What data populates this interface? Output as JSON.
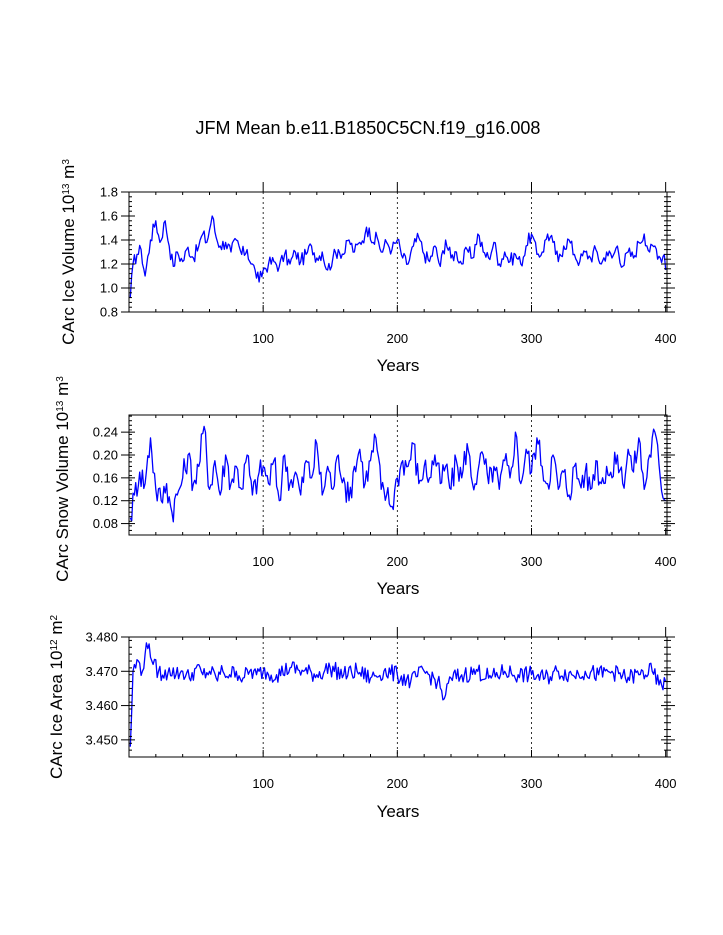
{
  "title": "JFM Mean b.e11.B1850C5CN.f19_g16.008",
  "colors": {
    "series": "#0000ff",
    "axis": "#000000",
    "background": "#ffffff"
  },
  "chart_data": [
    {
      "type": "line",
      "ylabel_main": "CArc Ice Volume 10",
      "ylabel_exp1": "13",
      "ylabel_mid": " m",
      "ylabel_exp2": "3",
      "xlabel": "Years",
      "xlim": [
        0,
        401
      ],
      "ylim": [
        0.8,
        1.8
      ],
      "xticks": [
        100,
        200,
        300,
        400
      ],
      "xtick_labels": [
        "100",
        "200",
        "300",
        "400"
      ],
      "yticks": [
        0.8,
        1.0,
        1.2,
        1.4,
        1.6,
        1.8
      ],
      "ytick_labels": [
        "0.8",
        "1.0",
        "1.2",
        "1.4",
        "1.6",
        "1.8"
      ],
      "grid_x": [
        100,
        200,
        300
      ],
      "anchors": [
        [
          1,
          0.92
        ],
        [
          3,
          1.2
        ],
        [
          6,
          1.28
        ],
        [
          9,
          1.32
        ],
        [
          12,
          1.1
        ],
        [
          16,
          1.4
        ],
        [
          20,
          1.56
        ],
        [
          23,
          1.38
        ],
        [
          27,
          1.56
        ],
        [
          30,
          1.35
        ],
        [
          33,
          1.18
        ],
        [
          36,
          1.3
        ],
        [
          40,
          1.22
        ],
        [
          44,
          1.34
        ],
        [
          48,
          1.25
        ],
        [
          52,
          1.35
        ],
        [
          55,
          1.45
        ],
        [
          58,
          1.38
        ],
        [
          62,
          1.6
        ],
        [
          65,
          1.42
        ],
        [
          68,
          1.35
        ],
        [
          72,
          1.38
        ],
        [
          76,
          1.3
        ],
        [
          80,
          1.4
        ],
        [
          84,
          1.28
        ],
        [
          88,
          1.32
        ],
        [
          91,
          1.2
        ],
        [
          94,
          1.15
        ],
        [
          97,
          1.05
        ],
        [
          100,
          1.15
        ],
        [
          104,
          1.2
        ],
        [
          108,
          1.22
        ],
        [
          112,
          1.18
        ],
        [
          116,
          1.28
        ],
        [
          120,
          1.2
        ],
        [
          124,
          1.3
        ],
        [
          128,
          1.22
        ],
        [
          132,
          1.28
        ],
        [
          136,
          1.35
        ],
        [
          140,
          1.25
        ],
        [
          144,
          1.3
        ],
        [
          148,
          1.15
        ],
        [
          152,
          1.25
        ],
        [
          156,
          1.32
        ],
        [
          160,
          1.28
        ],
        [
          164,
          1.4
        ],
        [
          168,
          1.3
        ],
        [
          172,
          1.38
        ],
        [
          176,
          1.45
        ],
        [
          179,
          1.5
        ],
        [
          182,
          1.38
        ],
        [
          185,
          1.42
        ],
        [
          188,
          1.3
        ],
        [
          192,
          1.38
        ],
        [
          196,
          1.32
        ],
        [
          200,
          1.4
        ],
        [
          204,
          1.25
        ],
        [
          208,
          1.2
        ],
        [
          212,
          1.35
        ],
        [
          216,
          1.42
        ],
        [
          220,
          1.28
        ],
        [
          224,
          1.22
        ],
        [
          228,
          1.35
        ],
        [
          232,
          1.18
        ],
        [
          236,
          1.4
        ],
        [
          240,
          1.25
        ],
        [
          244,
          1.3
        ],
        [
          248,
          1.2
        ],
        [
          252,
          1.32
        ],
        [
          256,
          1.25
        ],
        [
          260,
          1.45
        ],
        [
          264,
          1.3
        ],
        [
          268,
          1.25
        ],
        [
          272,
          1.38
        ],
        [
          276,
          1.2
        ],
        [
          280,
          1.3
        ],
        [
          284,
          1.22
        ],
        [
          288,
          1.28
        ],
        [
          292,
          1.2
        ],
        [
          296,
          1.35
        ],
        [
          300,
          1.45
        ],
        [
          304,
          1.28
        ],
        [
          308,
          1.3
        ],
        [
          312,
          1.45
        ],
        [
          316,
          1.38
        ],
        [
          320,
          1.22
        ],
        [
          324,
          1.35
        ],
        [
          328,
          1.4
        ],
        [
          332,
          1.28
        ],
        [
          336,
          1.22
        ],
        [
          340,
          1.3
        ],
        [
          344,
          1.25
        ],
        [
          348,
          1.32
        ],
        [
          352,
          1.2
        ],
        [
          356,
          1.3
        ],
        [
          360,
          1.25
        ],
        [
          364,
          1.35
        ],
        [
          368,
          1.18
        ],
        [
          372,
          1.3
        ],
        [
          376,
          1.25
        ],
        [
          380,
          1.38
        ],
        [
          384,
          1.45
        ],
        [
          388,
          1.3
        ],
        [
          392,
          1.35
        ],
        [
          396,
          1.25
        ],
        [
          399,
          1.28
        ],
        [
          400,
          1.15
        ]
      ],
      "amp": 0.06
    },
    {
      "type": "line",
      "ylabel_main": "CArc Snow Volume 10",
      "ylabel_exp1": "13",
      "ylabel_mid": " m",
      "ylabel_exp2": "3",
      "xlabel": "Years",
      "xlim": [
        0,
        401
      ],
      "ylim": [
        0.06,
        0.27
      ],
      "xticks": [
        100,
        200,
        300,
        400
      ],
      "xtick_labels": [
        "100",
        "200",
        "300",
        "400"
      ],
      "yticks": [
        0.08,
        0.12,
        0.16,
        0.2,
        0.24
      ],
      "ytick_labels": [
        "0.08",
        "0.12",
        "0.16",
        "0.20",
        "0.24"
      ],
      "grid_x": [
        100,
        200,
        300
      ],
      "anchors": [
        [
          1,
          0.09
        ],
        [
          4,
          0.13
        ],
        [
          8,
          0.17
        ],
        [
          12,
          0.15
        ],
        [
          16,
          0.23
        ],
        [
          20,
          0.14
        ],
        [
          24,
          0.12
        ],
        [
          28,
          0.15
        ],
        [
          32,
          0.1
        ],
        [
          36,
          0.13
        ],
        [
          40,
          0.16
        ],
        [
          44,
          0.2
        ],
        [
          48,
          0.15
        ],
        [
          52,
          0.18
        ],
        [
          56,
          0.25
        ],
        [
          60,
          0.14
        ],
        [
          64,
          0.19
        ],
        [
          68,
          0.13
        ],
        [
          72,
          0.2
        ],
        [
          76,
          0.15
        ],
        [
          80,
          0.18
        ],
        [
          84,
          0.14
        ],
        [
          88,
          0.2
        ],
        [
          92,
          0.13
        ],
        [
          96,
          0.16
        ],
        [
          100,
          0.18
        ],
        [
          104,
          0.15
        ],
        [
          108,
          0.19
        ],
        [
          112,
          0.12
        ],
        [
          116,
          0.2
        ],
        [
          120,
          0.15
        ],
        [
          124,
          0.17
        ],
        [
          128,
          0.13
        ],
        [
          132,
          0.19
        ],
        [
          136,
          0.16
        ],
        [
          140,
          0.22
        ],
        [
          144,
          0.13
        ],
        [
          148,
          0.18
        ],
        [
          152,
          0.14
        ],
        [
          156,
          0.2
        ],
        [
          160,
          0.16
        ],
        [
          164,
          0.12
        ],
        [
          168,
          0.18
        ],
        [
          172,
          0.21
        ],
        [
          176,
          0.15
        ],
        [
          180,
          0.19
        ],
        [
          184,
          0.23
        ],
        [
          188,
          0.14
        ],
        [
          192,
          0.13
        ],
        [
          196,
          0.11
        ],
        [
          200,
          0.16
        ],
        [
          204,
          0.19
        ],
        [
          208,
          0.18
        ],
        [
          212,
          0.22
        ],
        [
          216,
          0.15
        ],
        [
          220,
          0.18
        ],
        [
          224,
          0.16
        ],
        [
          228,
          0.2
        ],
        [
          232,
          0.15
        ],
        [
          236,
          0.18
        ],
        [
          240,
          0.14
        ],
        [
          244,
          0.19
        ],
        [
          248,
          0.16
        ],
        [
          252,
          0.22
        ],
        [
          256,
          0.15
        ],
        [
          260,
          0.17
        ],
        [
          264,
          0.2
        ],
        [
          268,
          0.15
        ],
        [
          272,
          0.18
        ],
        [
          276,
          0.14
        ],
        [
          280,
          0.19
        ],
        [
          284,
          0.16
        ],
        [
          288,
          0.24
        ],
        [
          292,
          0.15
        ],
        [
          296,
          0.21
        ],
        [
          300,
          0.17
        ],
        [
          304,
          0.23
        ],
        [
          308,
          0.18
        ],
        [
          312,
          0.15
        ],
        [
          316,
          0.2
        ],
        [
          320,
          0.14
        ],
        [
          324,
          0.17
        ],
        [
          328,
          0.13
        ],
        [
          332,
          0.18
        ],
        [
          336,
          0.15
        ],
        [
          340,
          0.17
        ],
        [
          344,
          0.14
        ],
        [
          348,
          0.19
        ],
        [
          352,
          0.15
        ],
        [
          356,
          0.18
        ],
        [
          360,
          0.16
        ],
        [
          364,
          0.2
        ],
        [
          368,
          0.15
        ],
        [
          372,
          0.21
        ],
        [
          376,
          0.17
        ],
        [
          380,
          0.23
        ],
        [
          384,
          0.14
        ],
        [
          388,
          0.2
        ],
        [
          392,
          0.24
        ],
        [
          396,
          0.16
        ],
        [
          400,
          0.12
        ]
      ],
      "amp": 0.025
    },
    {
      "type": "line",
      "ylabel_main": "CArc Ice Area 10",
      "ylabel_exp1": "12",
      "ylabel_mid": " m",
      "ylabel_exp2": "2",
      "xlabel": "Years",
      "xlim": [
        0,
        401
      ],
      "ylim": [
        3.445,
        3.48
      ],
      "xticks": [
        100,
        200,
        300,
        400
      ],
      "xtick_labels": [
        "100",
        "200",
        "300",
        "400"
      ],
      "yticks": [
        3.45,
        3.46,
        3.47,
        3.48
      ],
      "ytick_labels": [
        "3.450",
        "3.460",
        "3.470",
        "3.480"
      ],
      "grid_x": [
        100,
        200,
        300
      ],
      "anchors": [
        [
          1,
          3.448
        ],
        [
          3,
          3.47
        ],
        [
          7,
          3.473
        ],
        [
          10,
          3.47
        ],
        [
          12,
          3.475
        ],
        [
          15,
          3.478
        ],
        [
          18,
          3.472
        ],
        [
          22,
          3.47
        ],
        [
          26,
          3.468
        ],
        [
          30,
          3.471
        ],
        [
          35,
          3.469
        ],
        [
          40,
          3.47
        ],
        [
          45,
          3.468
        ],
        [
          50,
          3.471
        ],
        [
          55,
          3.469
        ],
        [
          60,
          3.47
        ],
        [
          65,
          3.468
        ],
        [
          70,
          3.47
        ],
        [
          75,
          3.469
        ],
        [
          80,
          3.47
        ],
        [
          85,
          3.468
        ],
        [
          90,
          3.47
        ],
        [
          95,
          3.469
        ],
        [
          100,
          3.47
        ],
        [
          110,
          3.469
        ],
        [
          120,
          3.471
        ],
        [
          130,
          3.47
        ],
        [
          140,
          3.469
        ],
        [
          150,
          3.471
        ],
        [
          160,
          3.469
        ],
        [
          170,
          3.47
        ],
        [
          180,
          3.468
        ],
        [
          190,
          3.47
        ],
        [
          200,
          3.469
        ],
        [
          210,
          3.467
        ],
        [
          220,
          3.47
        ],
        [
          230,
          3.467
        ],
        [
          235,
          3.462
        ],
        [
          240,
          3.468
        ],
        [
          250,
          3.469
        ],
        [
          260,
          3.47
        ],
        [
          270,
          3.468
        ],
        [
          280,
          3.47
        ],
        [
          290,
          3.469
        ],
        [
          300,
          3.469
        ],
        [
          310,
          3.468
        ],
        [
          320,
          3.47
        ],
        [
          330,
          3.469
        ],
        [
          340,
          3.47
        ],
        [
          350,
          3.469
        ],
        [
          360,
          3.47
        ],
        [
          370,
          3.468
        ],
        [
          380,
          3.469
        ],
        [
          390,
          3.47
        ],
        [
          395,
          3.466
        ],
        [
          400,
          3.467
        ]
      ],
      "amp": 0.0025
    }
  ]
}
